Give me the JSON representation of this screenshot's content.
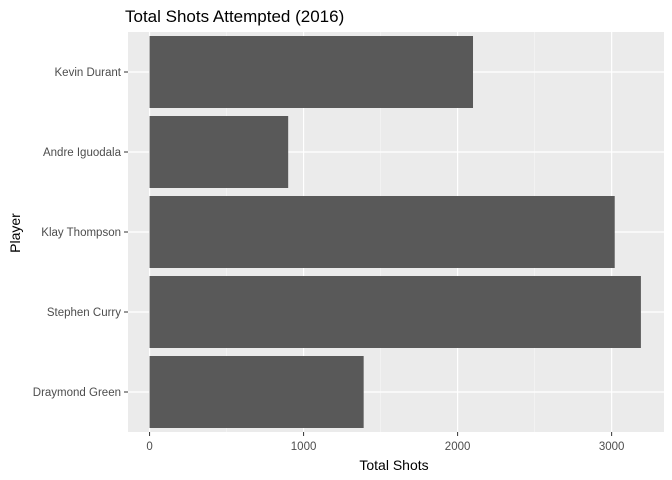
{
  "chart_data": {
    "type": "bar",
    "orientation": "horizontal",
    "title": "Total Shots Attempted (2016)",
    "xlabel": "Total Shots",
    "ylabel": "Player",
    "categories": [
      "Kevin Durant",
      "Andre Iguodala",
      "Klay Thompson",
      "Stephen Curry",
      "Draymond Green"
    ],
    "values": [
      2100,
      900,
      3020,
      3190,
      1390
    ],
    "xlim": [
      -140,
      3340
    ],
    "xticks": [
      0,
      1000,
      2000,
      3000
    ],
    "xtick_labels": [
      "0",
      "1000",
      "2000",
      "3000"
    ],
    "grid": true,
    "legend": "none",
    "colors": {
      "bar": "#595959",
      "panel": "#ebebeb",
      "grid_major": "#ffffff",
      "grid_minor": "#f5f5f5",
      "tick_text": "#4d4d4d"
    }
  }
}
